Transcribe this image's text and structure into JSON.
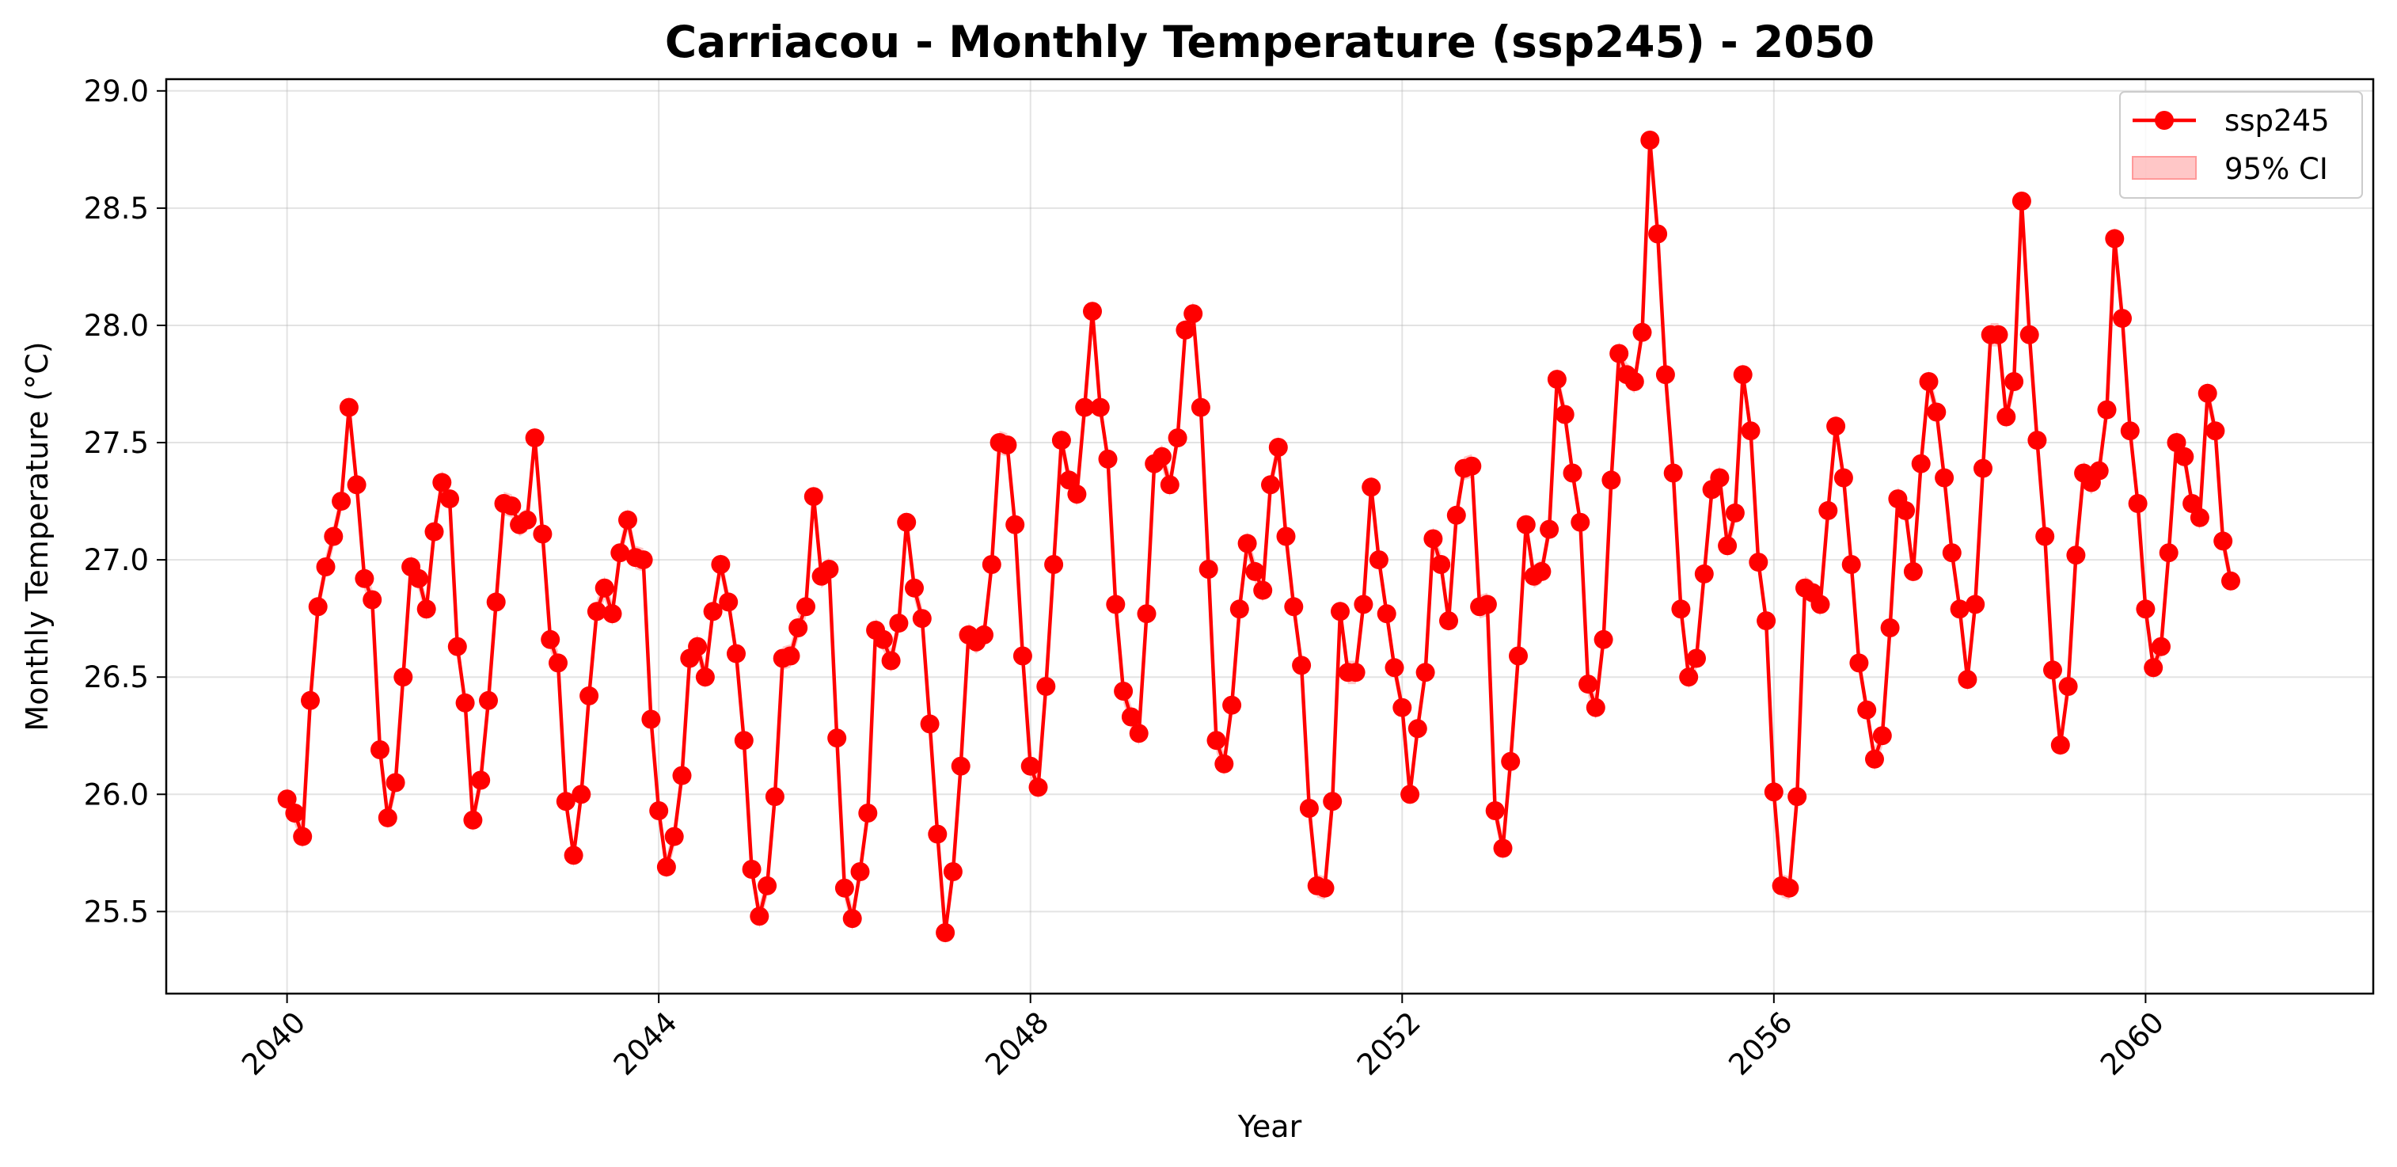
{
  "chart_data": {
    "type": "line",
    "title": "Carriacou - Monthly Temperature (ssp245) - 2050",
    "xlabel": "Year",
    "ylabel": "Monthly Temperature (°C)",
    "xlim": [
      2038.7,
      2062.45
    ],
    "ylim": [
      25.15,
      29.05
    ],
    "x_ticks": [
      2040,
      2044,
      2048,
      2052,
      2056,
      2060
    ],
    "x_tick_labels": [
      "2040",
      "2044",
      "2048",
      "2052",
      "2056",
      "2060"
    ],
    "y_ticks": [
      25.5,
      26.0,
      26.5,
      27.0,
      27.5,
      28.0,
      28.5,
      29.0
    ],
    "y_tick_labels": [
      "25.5",
      "26.0",
      "26.5",
      "27.0",
      "27.5",
      "28.0",
      "28.5",
      "29.0"
    ],
    "grid": true,
    "legend_position": "top-right",
    "series": [
      {
        "name": "ssp245",
        "color": "#ff0000",
        "marker": "circle",
        "x_start": "2040-01",
        "x_step": "1 month",
        "values": [
          25.98,
          25.92,
          25.82,
          26.4,
          26.8,
          26.97,
          27.1,
          27.25,
          27.65,
          27.32,
          26.92,
          26.83,
          26.19,
          25.9,
          26.05,
          26.5,
          26.97,
          26.92,
          26.79,
          27.12,
          27.33,
          27.26,
          26.63,
          26.39,
          25.89,
          26.06,
          26.4,
          26.82,
          27.24,
          27.23,
          27.15,
          27.17,
          27.52,
          27.11,
          26.66,
          26.56,
          25.97,
          25.74,
          26.0,
          26.42,
          26.78,
          26.88,
          26.77,
          27.03,
          27.17,
          27.01,
          27.0,
          26.32,
          25.93,
          25.69,
          25.82,
          26.08,
          26.58,
          26.63,
          26.5,
          26.78,
          26.98,
          26.82,
          26.6,
          26.23,
          25.68,
          25.48,
          25.61,
          25.99,
          26.58,
          26.59,
          26.71,
          26.8,
          27.27,
          26.93,
          26.96,
          26.24,
          25.6,
          25.47,
          25.67,
          25.92,
          26.7,
          26.66,
          26.57,
          26.73,
          27.16,
          26.88,
          26.75,
          26.3,
          25.83,
          25.41,
          25.67,
          26.12,
          26.68,
          26.65,
          26.68,
          26.98,
          27.5,
          27.49,
          27.15,
          26.59,
          26.12,
          26.03,
          26.46,
          26.98,
          27.51,
          27.34,
          27.28,
          27.65,
          28.06,
          27.65,
          27.43,
          26.81,
          26.44,
          26.33,
          26.26,
          26.77,
          27.41,
          27.44,
          27.32,
          27.52,
          27.98,
          28.05,
          27.65,
          26.96,
          26.23,
          26.13,
          26.38,
          26.79,
          27.07,
          26.95,
          26.87,
          27.32,
          27.48,
          27.1,
          26.8,
          26.55,
          25.94,
          25.61,
          25.6,
          25.97,
          26.78,
          26.52,
          26.52,
          26.81,
          27.31,
          27.0,
          26.77,
          26.54,
          26.37,
          26.0,
          26.28,
          26.52,
          27.09,
          26.98,
          26.74,
          27.19,
          27.39,
          27.4,
          26.8,
          26.81,
          25.93,
          25.77,
          26.14,
          26.59,
          27.15,
          26.93,
          26.95,
          27.13,
          27.77,
          27.62,
          27.37,
          27.16,
          26.47,
          26.37,
          26.66,
          27.34,
          27.88,
          27.79,
          27.76,
          27.97,
          28.79,
          28.39,
          27.79,
          27.37,
          26.79,
          26.5,
          26.58,
          26.94,
          27.3,
          27.35,
          27.06,
          27.2,
          27.79,
          27.55,
          26.99,
          26.74,
          26.01,
          25.61,
          25.6,
          25.99,
          26.88,
          26.86,
          26.81,
          27.21,
          27.57,
          27.35,
          26.98,
          26.56,
          26.36,
          26.15,
          26.25,
          26.71,
          27.26,
          27.21,
          26.95,
          27.41,
          27.76,
          27.63,
          27.35,
          27.03,
          26.79,
          26.49,
          26.81,
          27.39,
          27.96,
          27.96,
          27.61,
          27.76,
          28.53,
          27.96,
          27.51,
          27.1,
          26.53,
          26.21,
          26.46,
          27.02,
          27.37,
          27.33,
          27.38,
          27.64,
          28.37,
          28.03,
          27.55,
          27.24,
          26.79,
          26.54,
          26.63,
          27.03,
          27.5,
          27.44,
          27.24,
          27.18,
          27.71,
          27.55,
          27.08,
          26.91
        ]
      }
    ],
    "confidence_band": {
      "name": "95% CI",
      "color": "#ff9999",
      "half_width": 0.05
    }
  }
}
